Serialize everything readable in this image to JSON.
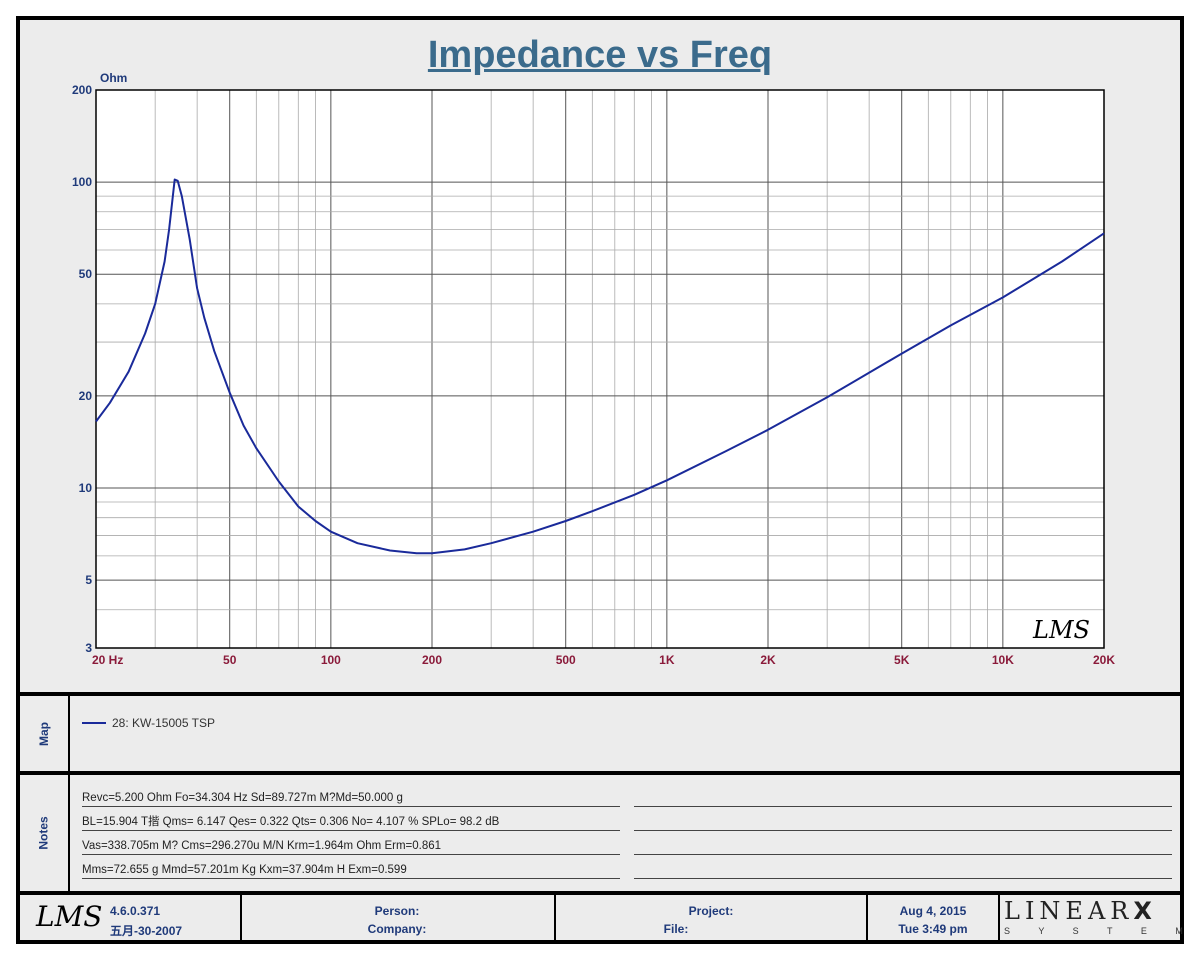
{
  "chart_data": {
    "type": "line",
    "title": "Impedance vs Freq",
    "ylabel": "Ohm",
    "xscale": "log",
    "yscale": "log",
    "xlim": [
      20,
      20000
    ],
    "ylim": [
      3,
      200
    ],
    "grid": true,
    "x_ticks": [
      {
        "value": 20,
        "label": "20  Hz"
      },
      {
        "value": 50,
        "label": "50"
      },
      {
        "value": 100,
        "label": "100"
      },
      {
        "value": 200,
        "label": "200"
      },
      {
        "value": 500,
        "label": "500"
      },
      {
        "value": 1000,
        "label": "1K"
      },
      {
        "value": 2000,
        "label": "2K"
      },
      {
        "value": 5000,
        "label": "5K"
      },
      {
        "value": 10000,
        "label": "10K"
      },
      {
        "value": 20000,
        "label": "20K"
      }
    ],
    "y_ticks": [
      {
        "value": 200,
        "label": "200"
      },
      {
        "value": 100,
        "label": "100"
      },
      {
        "value": 50,
        "label": "50"
      },
      {
        "value": 20,
        "label": "20"
      },
      {
        "value": 10,
        "label": "10"
      },
      {
        "value": 5,
        "label": "5"
      },
      {
        "value": 3,
        "label": "3"
      }
    ],
    "series": [
      {
        "name": "28: KW-15005 TSP",
        "color": "#1a2a9a",
        "points": [
          [
            20,
            16.5
          ],
          [
            22,
            19
          ],
          [
            25,
            24
          ],
          [
            28,
            32
          ],
          [
            30,
            40
          ],
          [
            32,
            55
          ],
          [
            33,
            70
          ],
          [
            34.3,
            102
          ],
          [
            35,
            101
          ],
          [
            36,
            90
          ],
          [
            38,
            65
          ],
          [
            40,
            45
          ],
          [
            42,
            36
          ],
          [
            45,
            28
          ],
          [
            50,
            20.5
          ],
          [
            55,
            16
          ],
          [
            60,
            13.5
          ],
          [
            70,
            10.5
          ],
          [
            80,
            8.7
          ],
          [
            90,
            7.8
          ],
          [
            100,
            7.2
          ],
          [
            120,
            6.6
          ],
          [
            150,
            6.25
          ],
          [
            180,
            6.12
          ],
          [
            200,
            6.12
          ],
          [
            250,
            6.3
          ],
          [
            300,
            6.6
          ],
          [
            400,
            7.2
          ],
          [
            500,
            7.8
          ],
          [
            600,
            8.4
          ],
          [
            800,
            9.5
          ],
          [
            1000,
            10.6
          ],
          [
            1500,
            13.2
          ],
          [
            2000,
            15.5
          ],
          [
            3000,
            19.8
          ],
          [
            5000,
            27.5
          ],
          [
            7000,
            34
          ],
          [
            10000,
            42
          ],
          [
            15000,
            55
          ],
          [
            20000,
            68
          ]
        ]
      }
    ]
  },
  "panels": {
    "map_label": "Map",
    "notes_label": "Notes",
    "legend_entry": "28: KW-15005 TSP",
    "notes": [
      "Revc=5.200 Ohm  Fo=34.304 Hz  Sd=89.727m M?Md=50.000 g",
      "BL=15.904 T揩  Qms= 6.147  Qes= 0.322  Qts= 0.306  No= 4.107 %  SPLo= 98.2 dB",
      "Vas=338.705m M? Cms=296.270u M/N  Krm=1.964m Ohm  Erm=0.861",
      "Mms=72.655 g  Mmd=57.201m Kg  Kxm=37.904m H  Exm=0.599"
    ]
  },
  "footer": {
    "version": "4.6.0.371",
    "build_date": "五月-30-2007",
    "person_label": "Person:",
    "company_label": "Company:",
    "project_label": "Project:",
    "file_label": "File:",
    "date": "Aug  4, 2015",
    "time": "Tue  3:49 pm",
    "brand_top": "LINEAR",
    "brand_x": "X",
    "brand_bottom": "S Y S T E M S",
    "lms_logo": "LMS"
  }
}
